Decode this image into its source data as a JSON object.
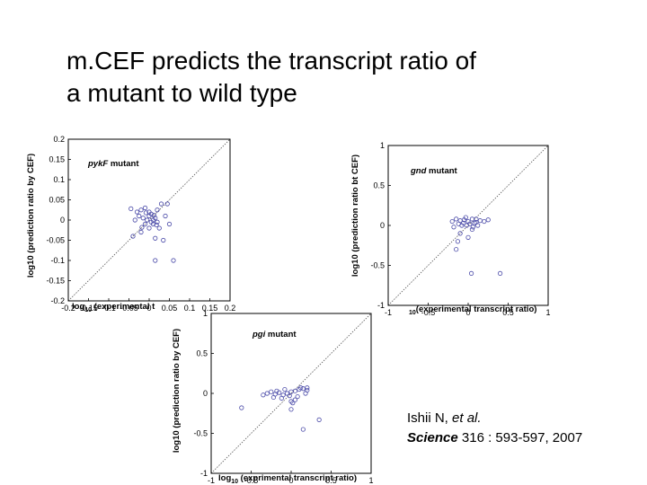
{
  "title": {
    "line1": "m.CEF predicts  the transcript ratio of",
    "line2": "a mutant to wild type"
  },
  "citation": {
    "authors": "Ishii N,",
    "etal": "et al.",
    "journal": "Science",
    "details": "316 : 593-597, 2007"
  },
  "colors": {
    "points": "#4a4aa8",
    "diagonal": "#555555",
    "frame": "#000000"
  },
  "chart_data": [
    {
      "type": "scatter",
      "annotation_italic": "pykF",
      "annotation_rest": " mutant",
      "xlabel_main": "log",
      "xlabel_sub": "10",
      "xlabel_rest": " (experimental t",
      "ylabel": "log10 (prediction ratio by CEF)",
      "xlim": [
        -0.2,
        0.2
      ],
      "ylim": [
        -0.2,
        0.2
      ],
      "xticks": [
        "-0.2",
        "-0.15",
        "-0.1",
        "-0.05",
        "0",
        "0.05",
        "0.1",
        "0.15",
        "0.2"
      ],
      "yticks": [
        "0.2",
        "0.15",
        "0.1",
        "0.05",
        "0",
        "-0.05",
        "-0.1",
        "-0.15",
        "-0.2"
      ],
      "xtick_values": [
        -0.2,
        -0.15,
        -0.1,
        -0.05,
        0,
        0.05,
        0.1,
        0.15,
        0.2
      ],
      "ytick_values": [
        0.2,
        0.15,
        0.1,
        0.05,
        0,
        -0.05,
        -0.1,
        -0.15,
        -0.2
      ],
      "diagonal": true,
      "points": [
        [
          -0.03,
          0.02
        ],
        [
          -0.02,
          0.025
        ],
        [
          -0.01,
          0.03
        ],
        [
          0.0,
          0.01
        ],
        [
          0.01,
          0.0
        ],
        [
          0.02,
          -0.005
        ],
        [
          -0.01,
          -0.01
        ],
        [
          0.0,
          -0.02
        ],
        [
          -0.02,
          -0.03
        ],
        [
          0.005,
          0.015
        ],
        [
          0.015,
          0.005
        ],
        [
          -0.005,
          0.0
        ],
        [
          0.01,
          -0.01
        ],
        [
          -0.015,
          0.005
        ],
        [
          0.0,
          0.02
        ],
        [
          0.03,
          0.04
        ],
        [
          -0.04,
          -0.04
        ],
        [
          0.025,
          -0.02
        ],
        [
          -0.025,
          0.01
        ],
        [
          0.005,
          -0.005
        ],
        [
          0.012,
          0.012
        ],
        [
          -0.008,
          0.018
        ],
        [
          0.018,
          -0.012
        ],
        [
          -0.035,
          0.0
        ],
        [
          0.045,
          0.04
        ],
        [
          0.04,
          0.01
        ],
        [
          0.015,
          -0.045
        ],
        [
          0.035,
          -0.05
        ],
        [
          0.02,
          0.025
        ],
        [
          -0.018,
          -0.018
        ],
        [
          0.015,
          -0.1
        ],
        [
          0.06,
          -0.1
        ],
        [
          -0.045,
          0.028
        ],
        [
          0.05,
          -0.01
        ]
      ]
    },
    {
      "type": "scatter",
      "annotation_italic": "gnd",
      "annotation_rest": " mutant",
      "xlabel_main": "",
      "xlabel_sub": "10",
      "xlabel_rest": "(experimental transcript ratio)",
      "ylabel": "log10 (prediction ratio bt CEF)",
      "xlim": [
        -1,
        1
      ],
      "ylim": [
        -1,
        1
      ],
      "xticks": [
        "-1",
        "-0.5",
        "0",
        "0.5",
        "1"
      ],
      "yticks": [
        "1",
        "0.5",
        "0",
        "-0.5",
        "-1"
      ],
      "xtick_values": [
        -1,
        -0.5,
        0,
        0.5,
        1
      ],
      "ytick_values": [
        1,
        0.5,
        0,
        -0.5,
        -1
      ],
      "diagonal": true,
      "points": [
        [
          -0.2,
          0.05
        ],
        [
          -0.15,
          0.08
        ],
        [
          -0.1,
          0.06
        ],
        [
          -0.05,
          0.07
        ],
        [
          0.0,
          0.05
        ],
        [
          0.05,
          0.08
        ],
        [
          0.1,
          0.04
        ],
        [
          0.15,
          0.06
        ],
        [
          -0.12,
          0.02
        ],
        [
          -0.08,
          0.0
        ],
        [
          0.02,
          0.02
        ],
        [
          0.08,
          0.03
        ],
        [
          -0.18,
          -0.02
        ],
        [
          0.12,
          0.0
        ],
        [
          -0.03,
          0.1
        ],
        [
          0.06,
          -0.02
        ],
        [
          0.2,
          0.05
        ],
        [
          -0.06,
          0.03
        ],
        [
          -0.1,
          -0.1
        ],
        [
          -0.13,
          -0.2
        ],
        [
          -0.15,
          -0.3
        ],
        [
          0.05,
          -0.05
        ],
        [
          0.0,
          -0.15
        ],
        [
          0.25,
          0.07
        ],
        [
          0.04,
          -0.6
        ],
        [
          0.4,
          -0.6
        ],
        [
          -0.02,
          0.0
        ],
        [
          0.1,
          0.08
        ]
      ]
    },
    {
      "type": "scatter",
      "annotation_italic": "pgi",
      "annotation_rest": " mutant",
      "xlabel_main": "log",
      "xlabel_sub": "10",
      "xlabel_rest": " (exprimental transcript ratio)",
      "ylabel": "log10 (prediction ratio by CEF)",
      "xlim": [
        -1,
        1
      ],
      "ylim": [
        -1,
        1
      ],
      "xticks": [
        "-1",
        "-0.5",
        "0",
        "0.5",
        "1"
      ],
      "yticks": [
        "1",
        "0.5",
        "0",
        "-0.5",
        "-1"
      ],
      "xtick_values": [
        -1,
        -0.5,
        0,
        0.5,
        1
      ],
      "ytick_values": [
        1,
        0.5,
        0,
        -0.5,
        -1
      ],
      "diagonal": true,
      "points": [
        [
          -0.3,
          0.0
        ],
        [
          -0.25,
          0.02
        ],
        [
          -0.2,
          -0.01
        ],
        [
          -0.15,
          0.01
        ],
        [
          -0.1,
          -0.02
        ],
        [
          -0.05,
          0.0
        ],
        [
          0.0,
          0.02
        ],
        [
          0.05,
          0.03
        ],
        [
          0.1,
          0.05
        ],
        [
          0.15,
          0.06
        ],
        [
          0.2,
          0.04
        ],
        [
          -0.22,
          -0.05
        ],
        [
          -0.12,
          -0.06
        ],
        [
          -0.02,
          -0.03
        ],
        [
          0.08,
          -0.04
        ],
        [
          0.18,
          0.0
        ],
        [
          -0.35,
          -0.02
        ],
        [
          0.0,
          -0.1
        ],
        [
          0.12,
          0.07
        ],
        [
          0.05,
          -0.08
        ],
        [
          0.02,
          -0.12
        ],
        [
          -0.08,
          0.05
        ],
        [
          0.2,
          0.07
        ],
        [
          0.0,
          -0.2
        ],
        [
          -0.62,
          -0.18
        ],
        [
          0.35,
          -0.33
        ],
        [
          0.15,
          -0.45
        ],
        [
          -0.18,
          0.03
        ]
      ]
    }
  ]
}
